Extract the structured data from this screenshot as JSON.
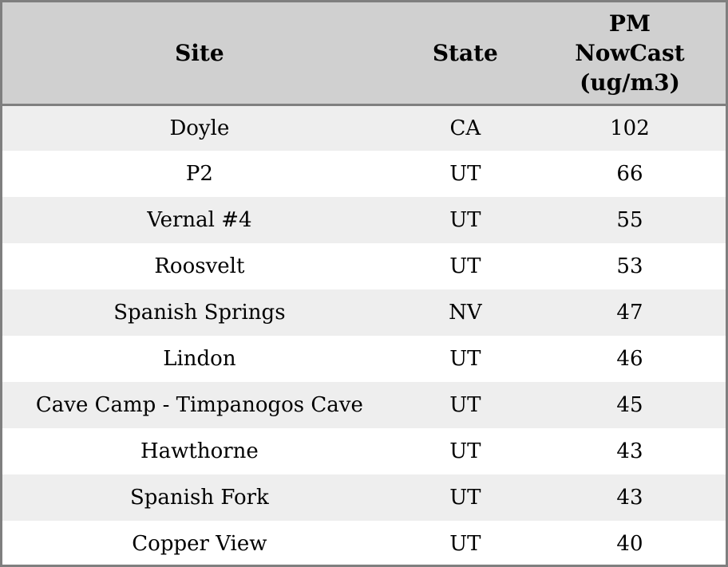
{
  "colors": {
    "header_bg": "#d0d0d0",
    "stripe_row_bg": "#eeeeee",
    "plain_row_bg": "#ffffff",
    "border": "#7f7f7f",
    "text": "#000000"
  },
  "header": {
    "pm_lines": [
      "PM",
      "NowCast",
      "(ug/m3)"
    ]
  },
  "chart_data": {
    "type": "table",
    "columns": [
      "Site",
      "State",
      "PM NowCast (ug/m3)"
    ],
    "rows": [
      {
        "site": "Doyle",
        "state": "CA",
        "pm_nowcast": 102
      },
      {
        "site": "P2",
        "state": "UT",
        "pm_nowcast": 66
      },
      {
        "site": "Vernal #4",
        "state": "UT",
        "pm_nowcast": 55
      },
      {
        "site": "Roosvelt",
        "state": "UT",
        "pm_nowcast": 53
      },
      {
        "site": "Spanish Springs",
        "state": "NV",
        "pm_nowcast": 47
      },
      {
        "site": "Lindon",
        "state": "UT",
        "pm_nowcast": 46
      },
      {
        "site": "Cave Camp - Timpanogos Cave",
        "state": "UT",
        "pm_nowcast": 45
      },
      {
        "site": "Hawthorne",
        "state": "UT",
        "pm_nowcast": 43
      },
      {
        "site": "Spanish Fork",
        "state": "UT",
        "pm_nowcast": 43
      },
      {
        "site": "Copper View",
        "state": "UT",
        "pm_nowcast": 40
      }
    ]
  }
}
